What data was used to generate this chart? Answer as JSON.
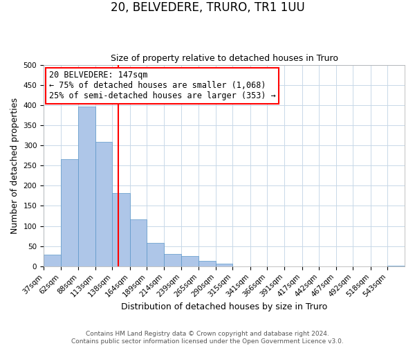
{
  "title": "20, BELVEDERE, TRURO, TR1 1UU",
  "subtitle": "Size of property relative to detached houses in Truro",
  "xlabel": "Distribution of detached houses by size in Truro",
  "ylabel": "Number of detached properties",
  "footer_line1": "Contains HM Land Registry data © Crown copyright and database right 2024.",
  "footer_line2": "Contains public sector information licensed under the Open Government Licence v3.0.",
  "annotation_line1": "20 BELVEDERE: 147sqm",
  "annotation_line2": "← 75% of detached houses are smaller (1,068)",
  "annotation_line3": "25% of semi-detached houses are larger (353) →",
  "bar_color": "#aec6e8",
  "bar_edge_color": "#5a96c8",
  "vline_x": 147,
  "vline_color": "red",
  "categories": [
    "37sqm",
    "62sqm",
    "88sqm",
    "113sqm",
    "138sqm",
    "164sqm",
    "189sqm",
    "214sqm",
    "239sqm",
    "265sqm",
    "290sqm",
    "315sqm",
    "341sqm",
    "366sqm",
    "391sqm",
    "417sqm",
    "442sqm",
    "467sqm",
    "492sqm",
    "518sqm",
    "543sqm"
  ],
  "bin_edges": [
    37,
    62,
    88,
    113,
    138,
    164,
    189,
    214,
    239,
    265,
    290,
    315,
    341,
    366,
    391,
    417,
    442,
    467,
    492,
    518,
    543,
    568
  ],
  "bar_heights": [
    29,
    265,
    396,
    309,
    181,
    116,
    58,
    31,
    25,
    14,
    6,
    0,
    0,
    0,
    0,
    0,
    0,
    0,
    0,
    0,
    2
  ],
  "ylim": [
    0,
    500
  ],
  "yticks": [
    0,
    50,
    100,
    150,
    200,
    250,
    300,
    350,
    400,
    450,
    500
  ],
  "background_color": "#ffffff",
  "grid_color": "#c8d8e8",
  "title_fontsize": 12,
  "subtitle_fontsize": 9,
  "axis_label_fontsize": 9,
  "tick_fontsize": 7.5,
  "annotation_fontsize": 8.5,
  "footer_fontsize": 6.5
}
